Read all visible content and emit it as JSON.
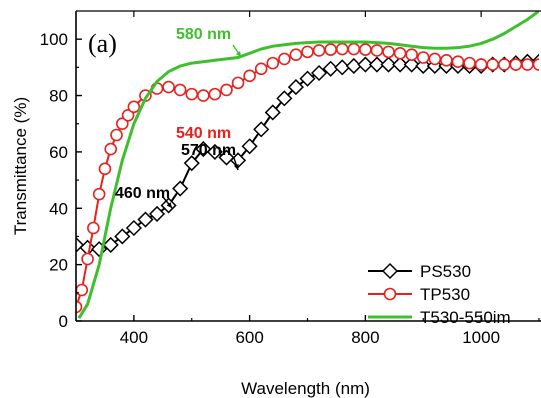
{
  "chart_data": {
    "type": "line",
    "panel_label": "(a)",
    "xlabel": "Wavelength (nm)",
    "ylabel": "Transmittance (%)",
    "xlim": [
      300,
      1100
    ],
    "ylim": [
      0,
      110
    ],
    "x_ticks": [
      400,
      600,
      800,
      1000
    ],
    "y_ticks": [
      0,
      20,
      40,
      60,
      80,
      100
    ],
    "grid": false,
    "legend_position": "bottom-right",
    "series": [
      {
        "name": "PS530",
        "color": "#000000",
        "marker": "diamond",
        "x": [
          300,
          320,
          340,
          360,
          380,
          400,
          420,
          440,
          460,
          480,
          500,
          520,
          540,
          560,
          580,
          600,
          620,
          640,
          660,
          680,
          700,
          720,
          740,
          760,
          780,
          800,
          820,
          840,
          860,
          880,
          900,
          920,
          940,
          960,
          980,
          1000,
          1020,
          1040,
          1060,
          1080,
          1100
        ],
        "y": [
          27,
          26,
          25.5,
          27,
          30,
          33,
          36,
          38,
          41,
          47,
          56,
          61,
          60,
          58,
          57,
          62,
          68,
          74,
          79,
          83,
          86,
          88,
          89.5,
          90,
          90.5,
          91,
          91,
          91,
          91,
          91,
          90.5,
          90.5,
          90.5,
          90.5,
          90.5,
          90.5,
          91,
          91,
          91.5,
          92,
          92
        ]
      },
      {
        "name": "TP530",
        "color": "#e8211d",
        "marker": "circle",
        "x": [
          300,
          310,
          320,
          330,
          340,
          350,
          360,
          370,
          380,
          390,
          400,
          420,
          440,
          460,
          480,
          500,
          520,
          540,
          560,
          580,
          600,
          620,
          640,
          660,
          680,
          700,
          720,
          740,
          760,
          780,
          800,
          820,
          840,
          860,
          880,
          900,
          920,
          940,
          960,
          980,
          1000,
          1020,
          1040,
          1060,
          1080,
          1100
        ],
        "y": [
          5,
          11,
          22,
          33,
          45,
          54,
          61,
          66,
          70,
          73,
          76,
          80,
          82.5,
          83,
          82,
          80.5,
          80,
          80.5,
          82,
          84.5,
          87,
          89.5,
          91.5,
          93,
          94.5,
          95.5,
          96,
          96.3,
          96.5,
          96.5,
          96.3,
          96,
          95.5,
          95,
          94.5,
          93.5,
          93,
          92.5,
          92,
          91.5,
          91,
          91,
          91,
          91,
          91,
          91
        ]
      },
      {
        "name": "T530-550im",
        "color": "#3fbf2e",
        "marker": "none",
        "x": [
          305,
          320,
          340,
          360,
          380,
          400,
          420,
          440,
          460,
          480,
          500,
          520,
          540,
          560,
          580,
          600,
          620,
          640,
          660,
          680,
          700,
          720,
          740,
          760,
          780,
          800,
          820,
          840,
          860,
          880,
          900,
          920,
          940,
          960,
          980,
          1000,
          1020,
          1040,
          1060,
          1080,
          1100
        ],
        "y": [
          1,
          6,
          20,
          40,
          57,
          70,
          79,
          85,
          88.5,
          90.5,
          91.5,
          92,
          92.5,
          93,
          93.5,
          95,
          96.5,
          97.5,
          98,
          98.5,
          98.8,
          99,
          99,
          99,
          99,
          99,
          98.8,
          98.5,
          98,
          97.5,
          97,
          96.8,
          96.8,
          97,
          97.5,
          98.5,
          100,
          102,
          104.5,
          107,
          110
        ]
      }
    ],
    "annotations": [
      {
        "text": "580 nm",
        "color": "#3fbf2e"
      },
      {
        "text": "540 nm",
        "color": "#e8211d"
      },
      {
        "text": "570 nm",
        "color": "#000000"
      },
      {
        "text": "460 nm",
        "color": "#000000"
      }
    ]
  }
}
